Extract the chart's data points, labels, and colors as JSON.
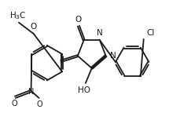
{
  "bg_color": "#ffffff",
  "bond_color": "#1a1a1a",
  "bond_width": 1.3,
  "font_size": 7.5,
  "figsize": [
    2.29,
    1.58
  ],
  "dpi": 100,
  "xlim": [
    0,
    10
  ],
  "ylim": [
    0,
    7
  ]
}
